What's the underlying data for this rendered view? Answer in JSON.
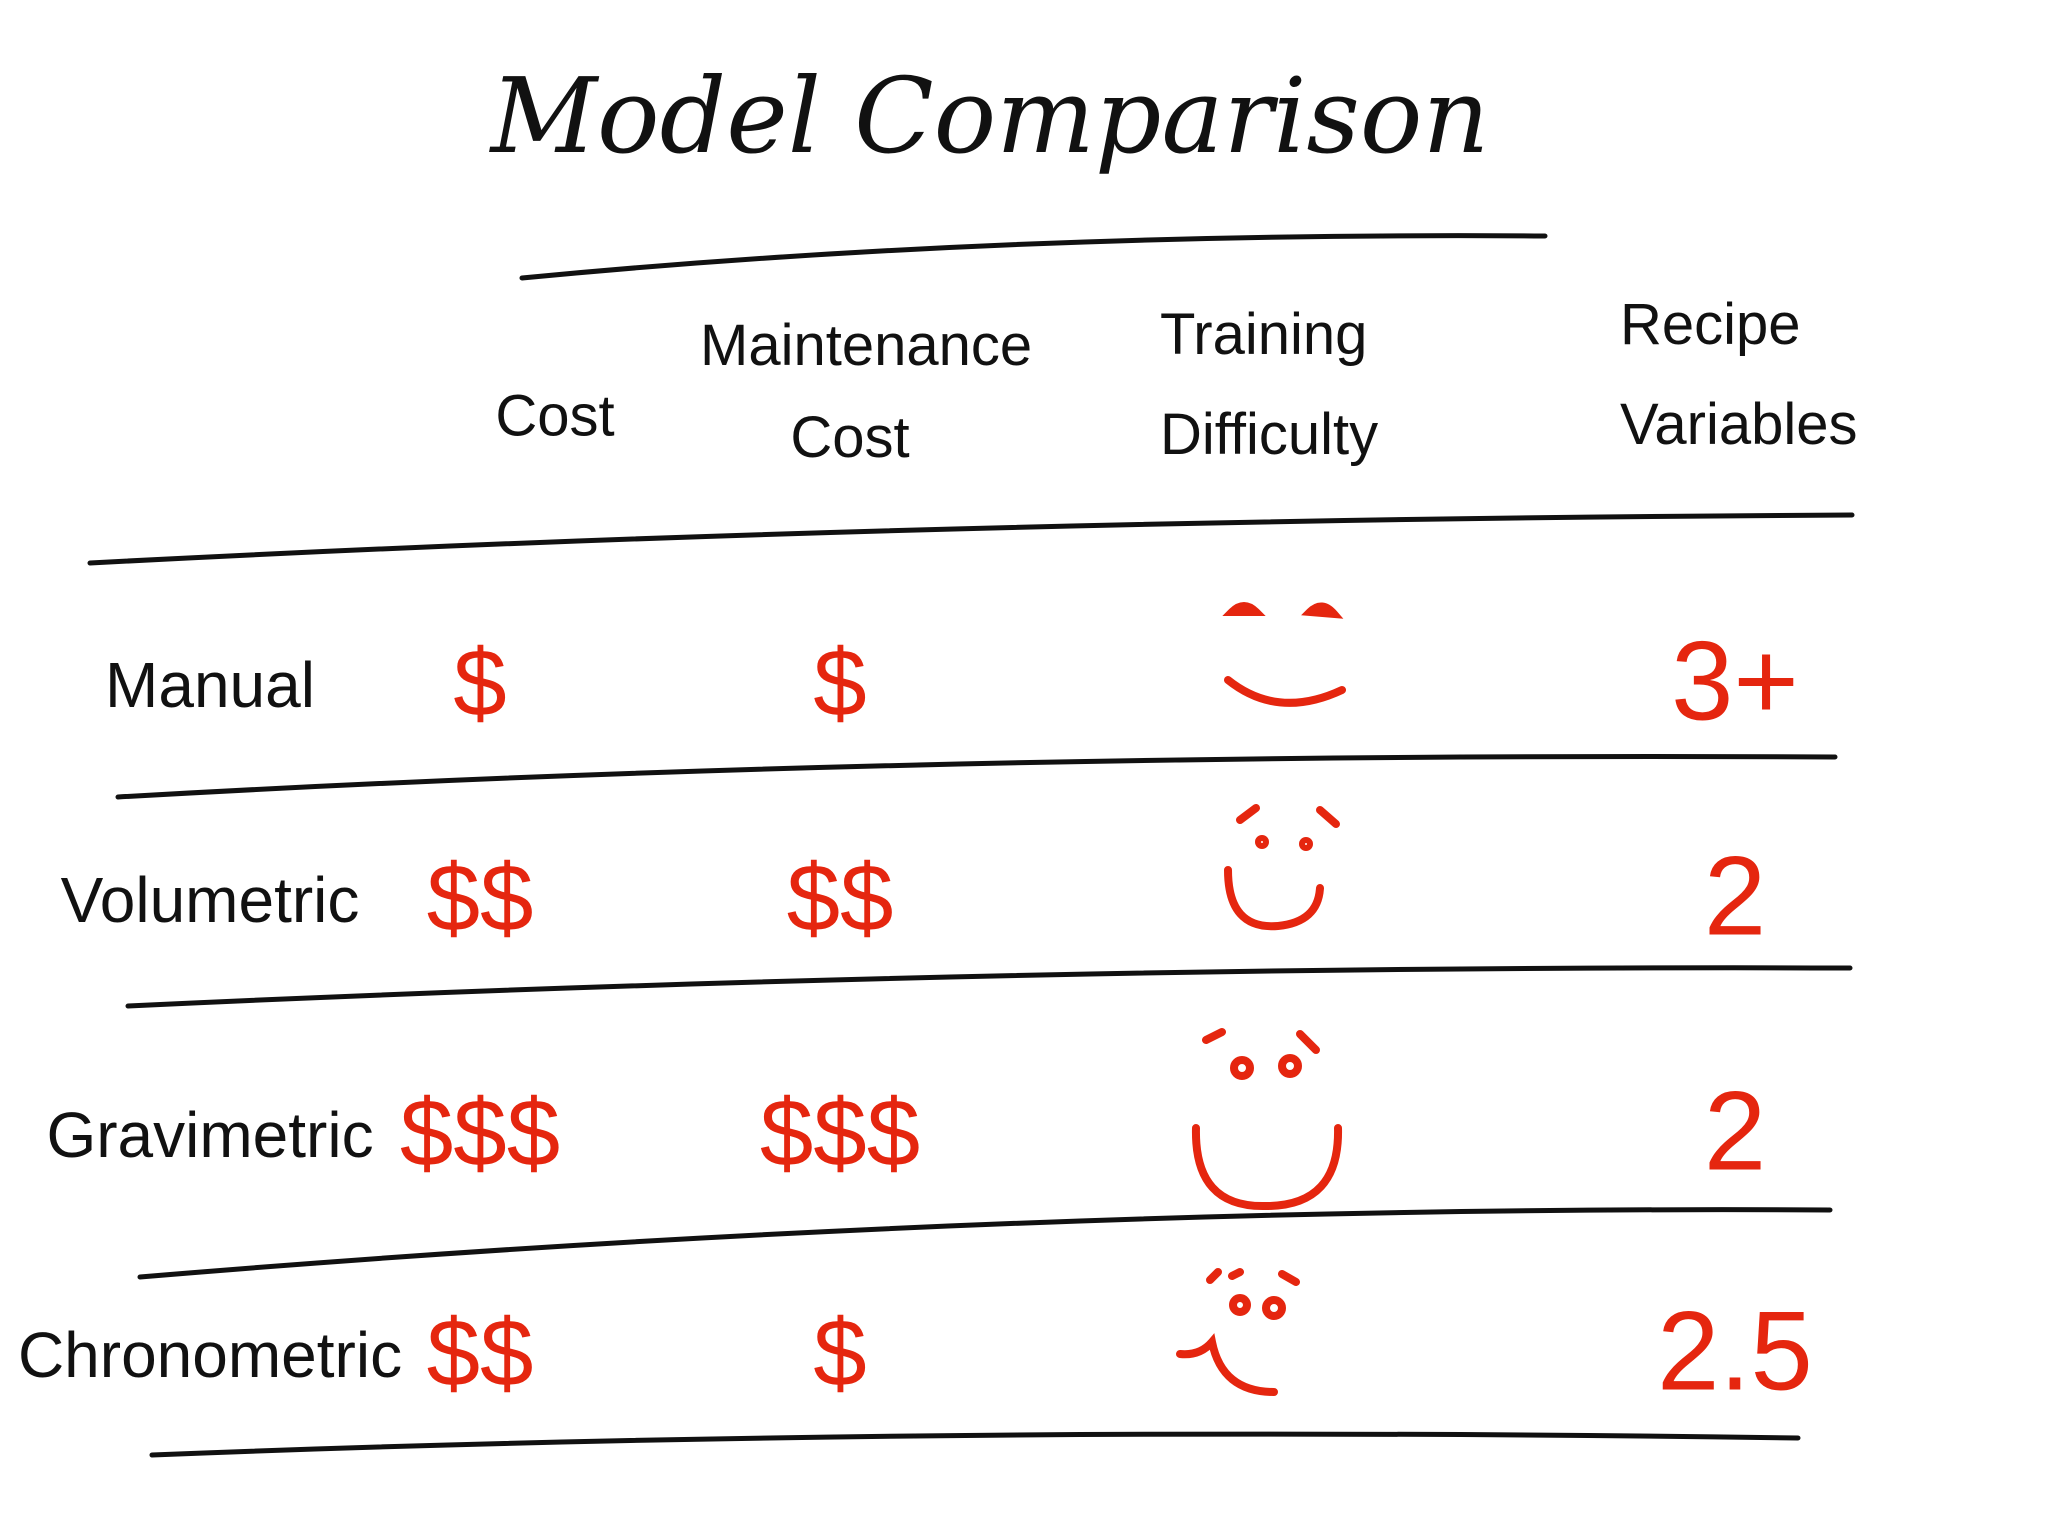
{
  "header": {
    "title": "Model Comparison"
  },
  "table": {
    "columns": [
      "Cost",
      "Maintenance Cost",
      "Training Difficulty",
      "Recipe Variables"
    ],
    "rows": [
      [
        "Manual",
        "$",
        "$",
        "3+"
      ],
      [
        "Volumetric",
        "$$",
        "$$",
        "2"
      ],
      [
        "Gravimetric",
        "$$$",
        "$$$",
        "2"
      ],
      [
        "Chronometric",
        "$$",
        "$",
        "2.5"
      ]
    ]
  }
}
